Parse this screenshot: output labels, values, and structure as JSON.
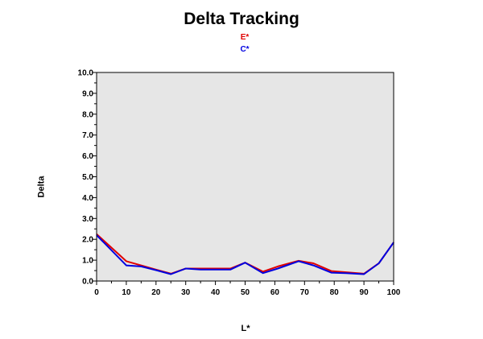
{
  "chart_data": {
    "type": "line",
    "title": "Delta Tracking",
    "xlabel": "L*",
    "ylabel": "Delta",
    "xlim": [
      0,
      100
    ],
    "ylim": [
      0,
      10
    ],
    "x_ticks": [
      "0",
      "10",
      "20",
      "30",
      "40",
      "50",
      "60",
      "70",
      "80",
      "90",
      "100"
    ],
    "y_ticks": [
      "0.0",
      "1.0",
      "2.0",
      "3.0",
      "4.0",
      "5.0",
      "6.0",
      "7.0",
      "8.0",
      "9.0",
      "10.0"
    ],
    "plot_background": "#e6e6e6",
    "legend_placement": "top-center",
    "series": [
      {
        "name": "E*",
        "color": "#e00000",
        "x": [
          0,
          10,
          15,
          20,
          25,
          30,
          35,
          40,
          45,
          50,
          56,
          61,
          68,
          73,
          79,
          84,
          90,
          95,
          100
        ],
        "y": [
          2.25,
          0.95,
          0.75,
          0.55,
          0.35,
          0.6,
          0.6,
          0.6,
          0.6,
          0.88,
          0.45,
          0.7,
          0.97,
          0.85,
          0.48,
          0.42,
          0.35,
          0.85,
          1.85
        ]
      },
      {
        "name": "C*",
        "color": "#0000e0",
        "x": [
          0,
          10,
          15,
          20,
          25,
          30,
          35,
          40,
          45,
          50,
          56,
          61,
          68,
          73,
          79,
          84,
          90,
          95,
          100
        ],
        "y": [
          2.2,
          0.75,
          0.7,
          0.52,
          0.33,
          0.6,
          0.55,
          0.55,
          0.55,
          0.88,
          0.38,
          0.6,
          0.95,
          0.75,
          0.4,
          0.38,
          0.33,
          0.85,
          1.85
        ]
      }
    ]
  }
}
